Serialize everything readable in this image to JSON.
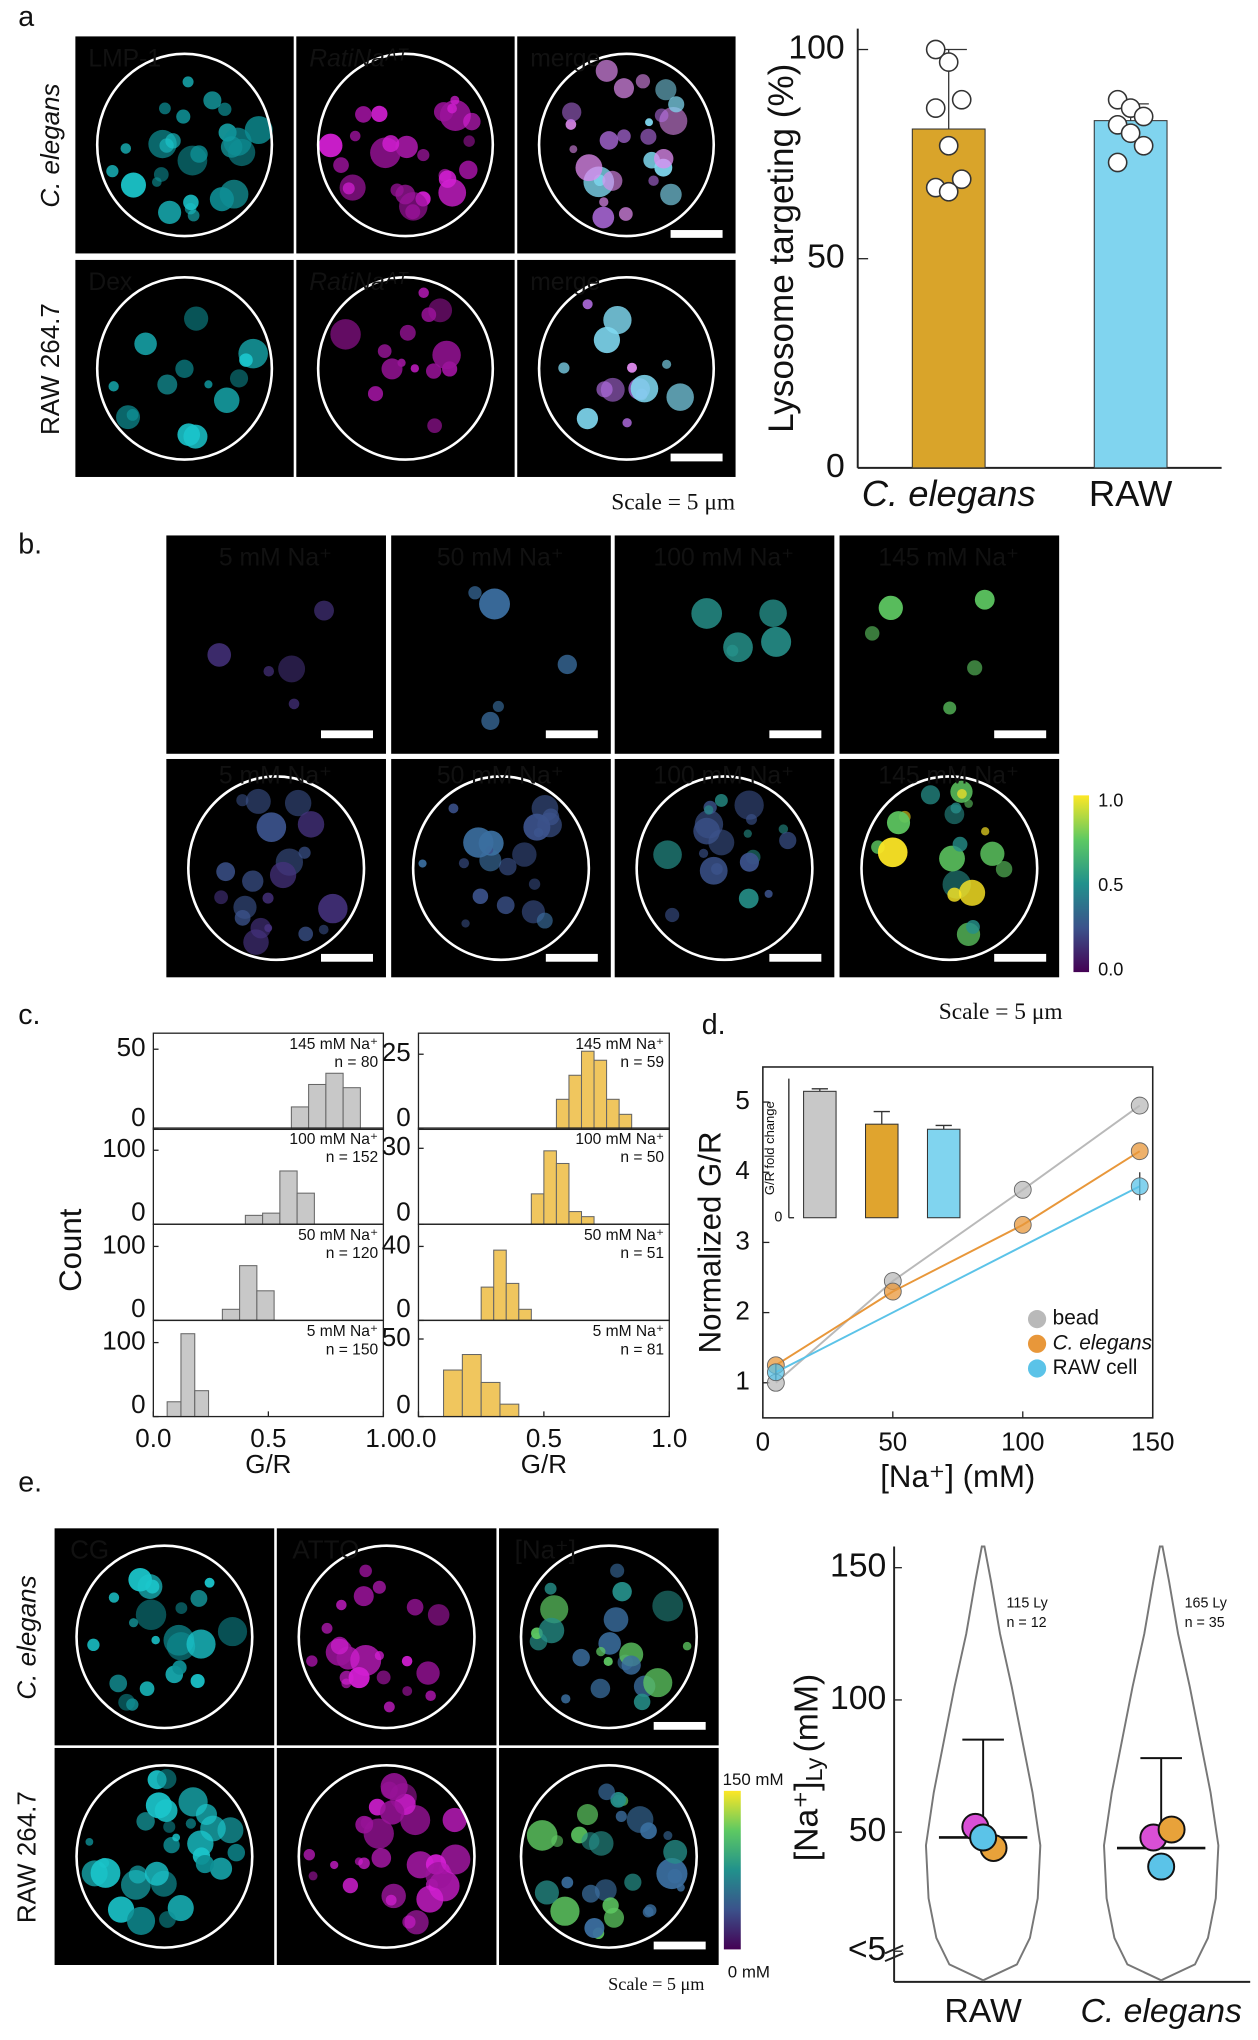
{
  "panel_labels": [
    "a",
    "b.",
    "c.",
    "d.",
    "e."
  ],
  "panel_a": {
    "row_labels": [
      "C. elegans",
      "RAW 264.7"
    ],
    "channels": [
      [
        "LMP-1",
        "RatiNaᴬᵀ",
        "merge"
      ],
      [
        "Dex",
        "RatiNaᴬᵀ",
        "merge"
      ]
    ],
    "scale": "Scale = 5 μm"
  },
  "panel_b": {
    "labels": [
      "5 mM Na⁺",
      "50 mM Na⁺",
      "100 mM Na⁺",
      "145 mM Na⁺"
    ],
    "colorbar": [
      "1.0",
      "0.5",
      "0.0"
    ],
    "scale": "Scale = 5 μm"
  },
  "panel_c": {
    "ylabel": "Count"
  },
  "panel_e": {
    "row_labels": [
      "C. elegans",
      "RAW 264.7"
    ],
    "channels": [
      "CG",
      "ATTO",
      "[Na⁺]"
    ],
    "colorbar": [
      "150 mM",
      "0 mM"
    ],
    "scale": "Scale = 5 μm"
  },
  "chart_data": [
    {
      "type": "bar",
      "ylabel": "Lysosome targeting (%)",
      "categories": [
        "C. elegans",
        "RAW"
      ],
      "values": [
        81,
        83
      ],
      "errors": [
        19,
        4
      ],
      "colors": [
        "#d9a42a",
        "#80d4ef"
      ],
      "points": [
        [
          100,
          97,
          88,
          86,
          77,
          69,
          67,
          66
        ],
        [
          88,
          86,
          84,
          82,
          80,
          77,
          73
        ]
      ],
      "ylim": [
        0,
        105
      ],
      "yticks": [
        0,
        50,
        100
      ]
    },
    {
      "type": "histogram",
      "annotations": [
        "145 mM Na⁺",
        "n = 80"
      ],
      "bins": [
        0.6,
        0.675,
        0.75,
        0.825,
        0.9
      ],
      "values": [
        14,
        28,
        35,
        26
      ],
      "color": "#c8c8c8",
      "xlim": [
        0,
        1
      ],
      "ylim": [
        0,
        60
      ],
      "yticks": [
        0,
        50
      ]
    },
    {
      "type": "histogram",
      "annotations": [
        "100 mM Na⁺",
        "n = 152"
      ],
      "bins": [
        0.4,
        0.475,
        0.55,
        0.625,
        0.7
      ],
      "values": [
        12,
        15,
        72,
        42
      ],
      "color": "#c8c8c8",
      "xlim": [
        0,
        1
      ],
      "ylim": [
        0,
        130
      ],
      "yticks": [
        0,
        100
      ]
    },
    {
      "type": "histogram",
      "annotations": [
        "50 mM Na⁺",
        "n = 120"
      ],
      "bins": [
        0.3,
        0.375,
        0.45,
        0.525
      ],
      "values": [
        15,
        74,
        40
      ],
      "color": "#c8c8c8",
      "xlim": [
        0,
        1
      ],
      "ylim": [
        0,
        130
      ],
      "yticks": [
        0,
        100
      ]
    },
    {
      "type": "histogram",
      "annotations": [
        "5 mM Na⁺",
        "n = 150"
      ],
      "bins": [
        0.06,
        0.12,
        0.18,
        0.24
      ],
      "values": [
        20,
        112,
        35
      ],
      "color": "#c8c8c8",
      "xlim": [
        0,
        1
      ],
      "ylim": [
        0,
        130
      ],
      "yticks": [
        0,
        100
      ],
      "xticks": [
        {
          "value": 0,
          "label": "0.0"
        },
        {
          "value": 0.5,
          "label": "0.5"
        },
        {
          "value": 1,
          "label": "1.0"
        }
      ],
      "xlabel": "G/R"
    },
    {
      "type": "histogram",
      "annotations": [
        "145 mM Na⁺",
        "n = 59"
      ],
      "bins": [
        0.55,
        0.6,
        0.65,
        0.7,
        0.75,
        0.8,
        0.85
      ],
      "values": [
        10,
        18,
        26,
        23,
        10,
        5
      ],
      "color": "#f0c65e",
      "xlim": [
        0,
        1
      ],
      "ylim": [
        0,
        32
      ],
      "yticks": [
        0,
        25
      ]
    },
    {
      "type": "histogram",
      "annotations": [
        "100 mM Na⁺",
        "n = 50"
      ],
      "bins": [
        0.45,
        0.5,
        0.55,
        0.6,
        0.65,
        0.7
      ],
      "values": [
        12,
        29,
        24,
        5,
        3
      ],
      "color": "#f0c65e",
      "xlim": [
        0,
        1
      ],
      "ylim": [
        0,
        38
      ],
      "yticks": [
        0,
        30
      ]
    },
    {
      "type": "histogram",
      "annotations": [
        "50 mM Na⁺",
        "n = 51"
      ],
      "bins": [
        0.25,
        0.3,
        0.35,
        0.4,
        0.45
      ],
      "values": [
        18,
        38,
        20,
        6
      ],
      "color": "#f0c65e",
      "xlim": [
        0,
        1
      ],
      "ylim": [
        0,
        52
      ],
      "yticks": [
        0,
        40
      ]
    },
    {
      "type": "histogram",
      "annotations": [
        "5 mM Na⁺",
        "n = 81"
      ],
      "bins": [
        0.1,
        0.175,
        0.25,
        0.325,
        0.4
      ],
      "values": [
        30,
        40,
        22,
        8
      ],
      "color": "#f0c65e",
      "xlim": [
        0,
        1
      ],
      "ylim": [
        0,
        62
      ],
      "yticks": [
        0,
        50
      ],
      "xticks": [
        {
          "value": 0,
          "label": "0.0"
        },
        {
          "value": 0.5,
          "label": "0.5"
        },
        {
          "value": 1,
          "label": "1.0"
        }
      ],
      "xlabel": "G/R"
    },
    {
      "type": "line",
      "xlabel": "[Na⁺] (mM)",
      "ylabel": "Normalized G/R",
      "xlim": [
        0,
        150
      ],
      "ylim": [
        0.5,
        5.5
      ],
      "xticks": [
        0,
        50,
        100,
        150
      ],
      "yticks": [
        1,
        2,
        3,
        4,
        5
      ],
      "legend": "lower right",
      "series": [
        {
          "name": "bead",
          "color": "#b9b9b9",
          "x": [
            5,
            50,
            100,
            145
          ],
          "values": [
            1.0,
            2.45,
            3.75,
            4.95
          ]
        },
        {
          "name": "C. elegans",
          "color": "#e8973a",
          "x": [
            5,
            50,
            100,
            145
          ],
          "values": [
            1.25,
            2.3,
            3.25,
            4.3
          ]
        },
        {
          "name": "RAW cell",
          "color": "#5bc3e8",
          "x": [
            5,
            145
          ],
          "values": [
            1.15,
            3.8
          ],
          "errors": [
            0.12,
            0.2
          ]
        }
      ]
    },
    {
      "type": "bar",
      "ylabel": "G/R fold change",
      "categories": [
        null,
        null,
        null
      ],
      "values": [
        5.0,
        3.7,
        3.5
      ],
      "errors": [
        0.1,
        0.5,
        0.15
      ],
      "colors": [
        "#c8c8c8",
        "#e0a42e",
        "#80d4ef"
      ],
      "ylim": [
        0,
        5.5
      ],
      "yticks": [
        0
      ]
    },
    {
      "type": "violin",
      "ylabel": "[Na⁺]",
      "ylabel_sub": "Ly",
      "ylabel_unit": "(mM)",
      "categories": [
        "RAW",
        "C. elegans"
      ],
      "means": [
        48,
        44
      ],
      "errors": [
        37,
        34
      ],
      "annotations": [
        [
          "115 Ly",
          "n = 12"
        ],
        [
          "165 Ly",
          "n = 35"
        ]
      ],
      "replicate_means": [
        [
          52,
          44,
          48
        ],
        [
          48,
          51,
          37
        ]
      ],
      "replicate_colors": [
        "#d94fd6",
        "#e8a23a",
        "#5bc3e8"
      ],
      "ylim": [
        -6.6,
        158
      ],
      "yticks": [
        {
          "value": 5,
          "label": "<5"
        },
        50,
        100,
        150
      ]
    }
  ]
}
